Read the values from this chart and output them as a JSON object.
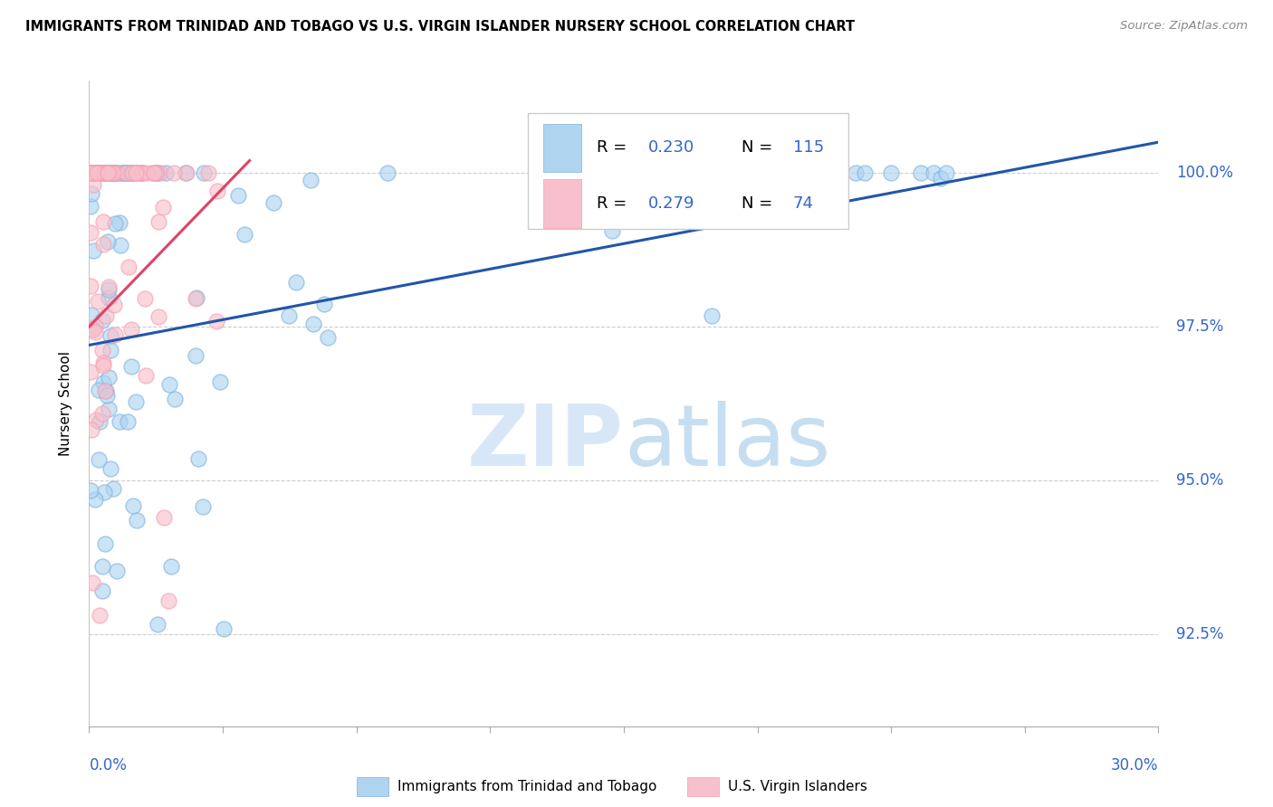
{
  "title": "IMMIGRANTS FROM TRINIDAD AND TOBAGO VS U.S. VIRGIN ISLANDER NURSERY SCHOOL CORRELATION CHART",
  "source": "Source: ZipAtlas.com",
  "ylabel": "Nursery School",
  "ytick_values": [
    92.5,
    95.0,
    97.5,
    100.0
  ],
  "xmin": 0.0,
  "xmax": 30.0,
  "ymin": 91.0,
  "ymax": 101.5,
  "legend_r1": "0.230",
  "legend_n1": "115",
  "legend_r2": "0.279",
  "legend_n2": "74",
  "legend_label1": "Immigrants from Trinidad and Tobago",
  "legend_label2": "U.S. Virgin Islanders",
  "blue_color": "#7fb3e0",
  "pink_color": "#f5a0b0",
  "blue_fill": "#aed4f0",
  "pink_fill": "#f8c0cc",
  "blue_line_color": "#2255aa",
  "pink_line_color": "#dd4466",
  "text_blue": "#3366cc",
  "grid_color": "#cccccc",
  "axis_color": "#aaaaaa"
}
